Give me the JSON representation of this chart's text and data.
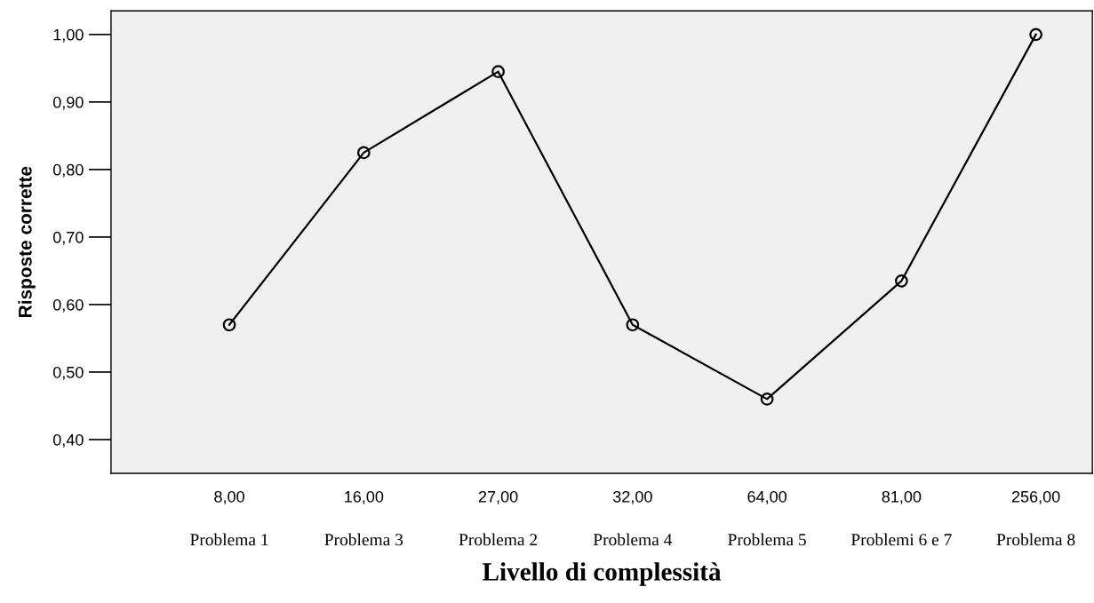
{
  "chart_data": {
    "type": "line",
    "xlabel": "Livello di complessità",
    "ylabel": "Risposte corrette",
    "categories": [
      "8,00",
      "16,00",
      "27,00",
      "32,00",
      "64,00",
      "81,00",
      "256,00"
    ],
    "annotations": [
      "Problema 1",
      "Problema 3",
      "Problema 2",
      "Problema 4",
      "Problema 5",
      "Problemi 6 e 7",
      "Problema 8"
    ],
    "series": [
      {
        "color": "#000000",
        "values": [
          0.57,
          0.825,
          0.945,
          0.57,
          0.46,
          0.635,
          1.0
        ]
      }
    ],
    "ylim": [
      0.35,
      1.035
    ],
    "yticks": [
      {
        "value": 0.4,
        "label": "0,40"
      },
      {
        "value": 0.5,
        "label": "0,50"
      },
      {
        "value": 0.6,
        "label": "0,60"
      },
      {
        "value": 0.7,
        "label": "0,70"
      },
      {
        "value": 0.8,
        "label": "0,80"
      },
      {
        "value": 0.9,
        "label": "0,90"
      },
      {
        "value": 1.0,
        "label": "1,00"
      }
    ],
    "marker": "circle",
    "line_style": "solid",
    "grid": false,
    "legend": false
  }
}
